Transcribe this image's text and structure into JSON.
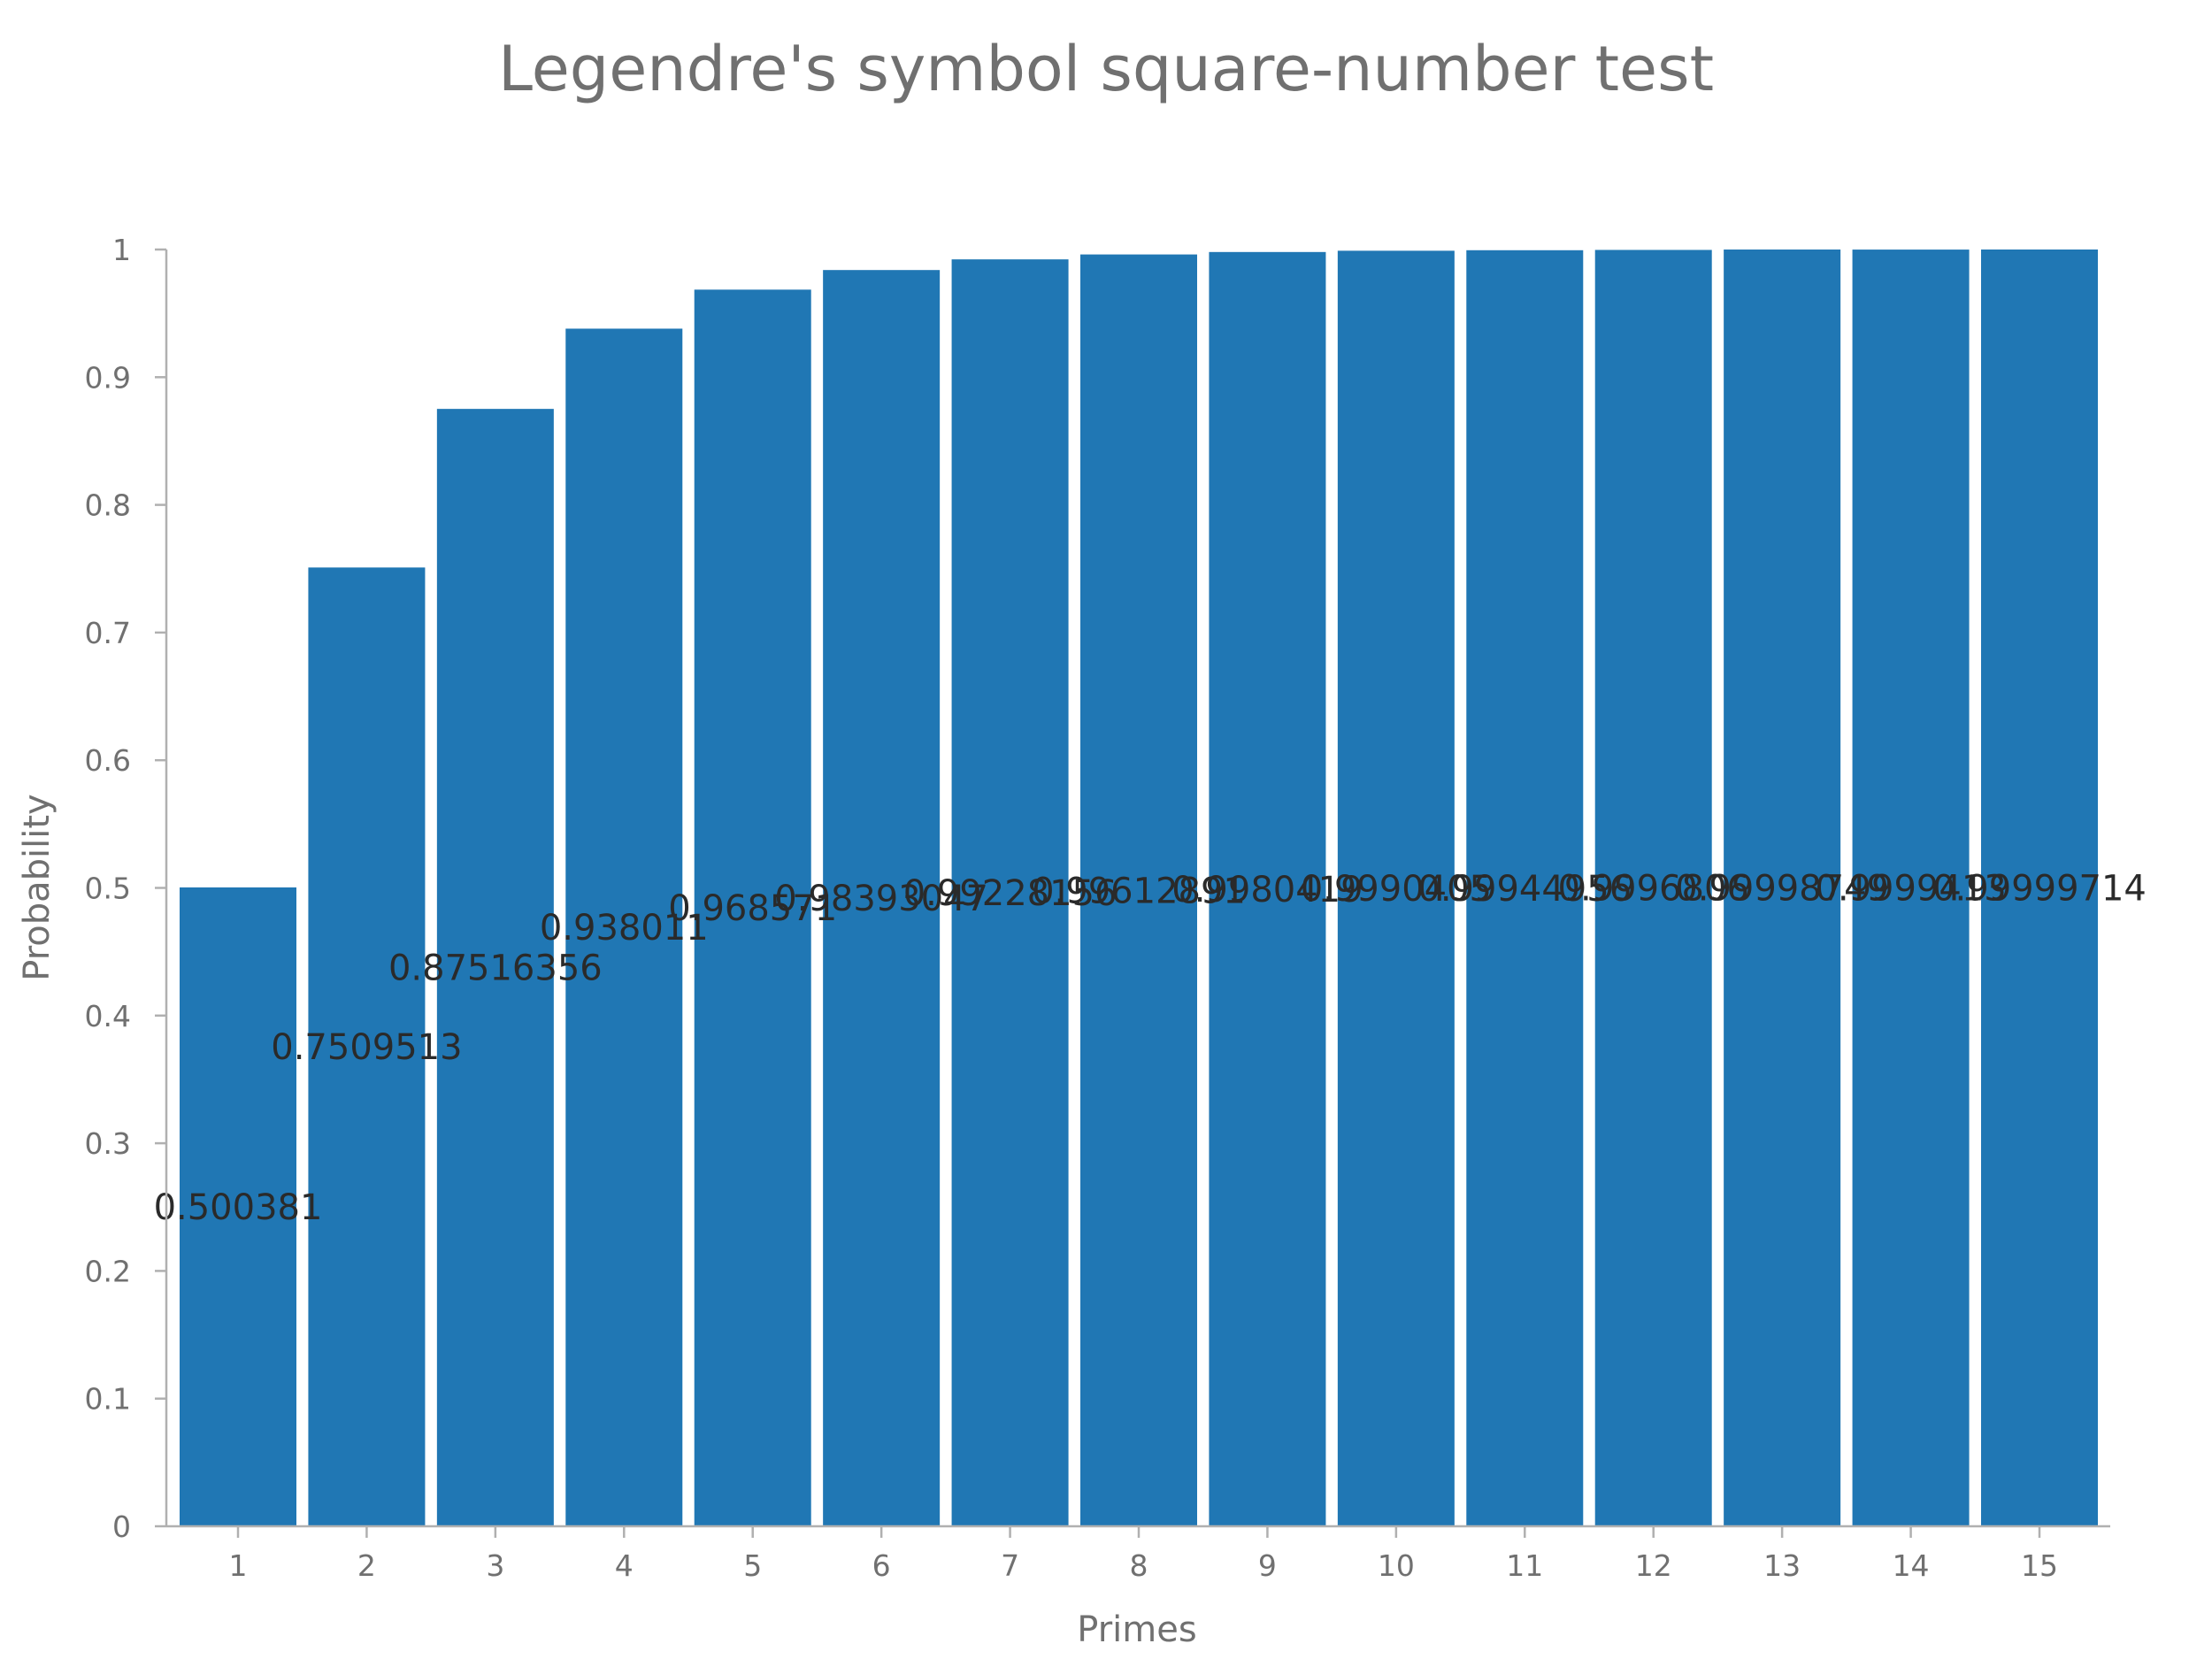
{
  "chart_data": {
    "type": "bar",
    "title": "Legendre's symbol square-number test",
    "xlabel": "Primes",
    "ylabel": "Probability",
    "categories": [
      "1",
      "2",
      "3",
      "4",
      "5",
      "6",
      "7",
      "8",
      "9",
      "10",
      "11",
      "12",
      "13",
      "14",
      "15"
    ],
    "values": [
      0.500381,
      0.7509513,
      0.87516356,
      0.938011,
      0.968571,
      0.98393047,
      0.99228156,
      0.99612891,
      0.9980419,
      0.9990405,
      0.99944956,
      0.9996806,
      0.99998749,
      0.9999413,
      0.99999714
    ],
    "data_labels": [
      "0.500381",
      "0.7509513",
      "0.87516356",
      "0.938011",
      "0.968571",
      "0.98393047",
      "0.99228156",
      "0.99612891",
      "0.9980419",
      "0.9990405",
      "0.99944956",
      "0.9996806",
      "0.99998749",
      "0.9999413",
      "0.99999714"
    ],
    "ylim": [
      0,
      1
    ],
    "yticks": [
      "0",
      "0.1",
      "0.2",
      "0.3",
      "0.4",
      "0.5",
      "0.6",
      "0.7",
      "0.8",
      "0.9",
      "1"
    ],
    "grid": false,
    "legend": "none",
    "colors": {
      "bar": "#2077b4",
      "axis": "#b0b0b0",
      "text": "#707070",
      "label": "#2a2a2a"
    }
  }
}
